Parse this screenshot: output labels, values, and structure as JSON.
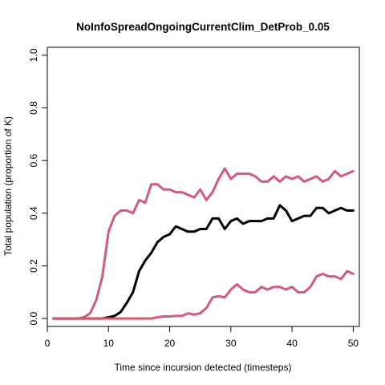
{
  "chart_data": {
    "type": "line",
    "title": "NoInfoSpreadOngoingCurrentClim_DetProb_0.05",
    "xlabel": "Time since incursion detected (timesteps)",
    "ylabel": "Total population (proportion of K)",
    "xlim": [
      0,
      51
    ],
    "ylim": [
      -0.03,
      1.03
    ],
    "xticks": [
      0,
      10,
      20,
      30,
      40,
      50
    ],
    "yticks": [
      0.0,
      0.2,
      0.4,
      0.6,
      0.8,
      1.0
    ],
    "xtick_labels": [
      "0",
      "10",
      "20",
      "30",
      "40",
      "50"
    ],
    "ytick_labels": [
      "0.0",
      "0.2",
      "0.4",
      "0.6",
      "0.8",
      "1.0"
    ],
    "grid": false,
    "legend": "none",
    "x": [
      1,
      2,
      3,
      4,
      5,
      6,
      7,
      8,
      9,
      10,
      11,
      12,
      13,
      14,
      15,
      16,
      17,
      18,
      19,
      20,
      21,
      22,
      23,
      24,
      25,
      26,
      27,
      28,
      29,
      30,
      31,
      32,
      33,
      34,
      35,
      36,
      37,
      38,
      39,
      40,
      41,
      42,
      43,
      44,
      45,
      46,
      47,
      48,
      49,
      50
    ],
    "series": [
      {
        "color": "#d45a78",
        "width": 3,
        "values": [
          0,
          0,
          0,
          0,
          0,
          0.005,
          0.02,
          0.07,
          0.16,
          0.33,
          0.39,
          0.41,
          0.41,
          0.4,
          0.45,
          0.44,
          0.51,
          0.51,
          0.49,
          0.49,
          0.48,
          0.48,
          0.47,
          0.46,
          0.49,
          0.45,
          0.48,
          0.53,
          0.57,
          0.53,
          0.55,
          0.55,
          0.55,
          0.54,
          0.52,
          0.52,
          0.54,
          0.52,
          0.54,
          0.53,
          0.54,
          0.52,
          0.53,
          0.54,
          0.52,
          0.53,
          0.56,
          0.54,
          0.55,
          0.56
        ]
      },
      {
        "color": "#000000",
        "width": 3,
        "values": [
          0,
          0,
          0,
          0,
          0,
          0,
          0,
          0,
          0,
          0.005,
          0.01,
          0.025,
          0.06,
          0.1,
          0.18,
          0.22,
          0.25,
          0.29,
          0.31,
          0.32,
          0.35,
          0.34,
          0.33,
          0.33,
          0.34,
          0.34,
          0.38,
          0.38,
          0.34,
          0.37,
          0.38,
          0.36,
          0.37,
          0.37,
          0.37,
          0.38,
          0.38,
          0.43,
          0.41,
          0.37,
          0.38,
          0.39,
          0.39,
          0.42,
          0.42,
          0.4,
          0.41,
          0.42,
          0.41,
          0.41
        ]
      },
      {
        "color": "#d45a78",
        "width": 3,
        "values": [
          0,
          0,
          0,
          0,
          0,
          0,
          0,
          0,
          0,
          0,
          0,
          0,
          0,
          0,
          0,
          0,
          0,
          0.005,
          0.008,
          0.008,
          0.01,
          0.01,
          0.02,
          0.015,
          0.02,
          0.04,
          0.08,
          0.085,
          0.08,
          0.11,
          0.13,
          0.11,
          0.1,
          0.1,
          0.12,
          0.11,
          0.12,
          0.12,
          0.11,
          0.12,
          0.1,
          0.1,
          0.12,
          0.16,
          0.17,
          0.16,
          0.16,
          0.15,
          0.18,
          0.17
        ]
      }
    ]
  }
}
